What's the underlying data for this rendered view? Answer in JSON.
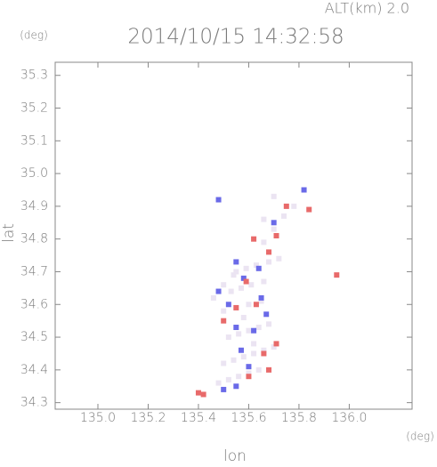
{
  "chart_data": {
    "type": "scatter",
    "title": "2014/10/15 14:32:58",
    "annotation": "ALT(km) 2.0",
    "xlabel": "lon",
    "ylabel": "lat",
    "x_unit": "(deg)",
    "y_unit": "(deg)",
    "xlim": [
      134.83,
      136.25
    ],
    "ylim": [
      34.28,
      35.34
    ],
    "xticks": [
      {
        "value": 135.0,
        "label": "135.0"
      },
      135.2,
      135.4,
      135.6,
      135.8,
      {
        "value": 136.0,
        "label": "136.0"
      }
    ],
    "yticks": [
      34.3,
      34.4,
      34.5,
      34.6,
      34.7,
      34.8,
      34.9,
      {
        "value": 35.0,
        "label": "35.0"
      },
      35.1,
      35.2,
      35.3
    ],
    "series": [
      {
        "color": "#ebe4f2",
        "x": [
          135.48,
          135.52,
          135.56,
          135.6,
          135.64,
          135.5,
          135.54,
          135.58,
          135.62,
          135.66,
          135.7,
          135.52,
          135.56,
          135.6,
          135.64,
          135.68,
          135.5,
          135.55,
          135.6,
          135.65,
          135.53,
          135.57,
          135.61,
          135.66,
          135.55,
          135.59,
          135.63,
          135.68,
          135.72,
          135.46,
          135.5,
          135.54,
          135.58,
          135.62,
          135.66,
          135.7,
          135.74,
          135.78,
          135.66,
          135.7
        ],
        "y": [
          34.36,
          34.37,
          34.38,
          34.39,
          34.4,
          34.42,
          34.43,
          34.44,
          34.45,
          34.46,
          34.47,
          34.5,
          34.51,
          34.52,
          34.53,
          34.54,
          34.58,
          34.59,
          34.6,
          34.61,
          34.64,
          34.65,
          34.66,
          34.67,
          34.7,
          34.71,
          34.72,
          34.73,
          34.74,
          34.62,
          34.66,
          34.69,
          34.56,
          34.48,
          34.79,
          34.83,
          34.87,
          34.9,
          34.86,
          34.93
        ]
      },
      {
        "color": "#6a6ae8",
        "x": [
          135.55,
          135.5,
          135.6,
          135.57,
          135.52,
          135.58,
          135.55,
          135.65,
          135.62,
          135.7,
          135.82,
          135.67,
          135.55,
          135.48,
          135.64,
          135.48
        ],
        "y": [
          34.35,
          34.34,
          34.41,
          34.46,
          34.6,
          34.68,
          34.73,
          34.62,
          34.52,
          34.85,
          34.95,
          34.57,
          34.53,
          34.64,
          34.71,
          34.92
        ]
      },
      {
        "color": "#e86a6a",
        "x": [
          135.4,
          135.42,
          135.95,
          135.6,
          135.68,
          135.71,
          135.66,
          135.55,
          135.63,
          135.59,
          135.68,
          135.71,
          135.84,
          135.75,
          135.62,
          135.5
        ],
        "y": [
          34.33,
          34.325,
          34.69,
          34.38,
          34.4,
          34.48,
          34.45,
          34.59,
          34.6,
          34.67,
          34.76,
          34.81,
          34.89,
          34.9,
          34.8,
          34.55
        ]
      }
    ]
  }
}
